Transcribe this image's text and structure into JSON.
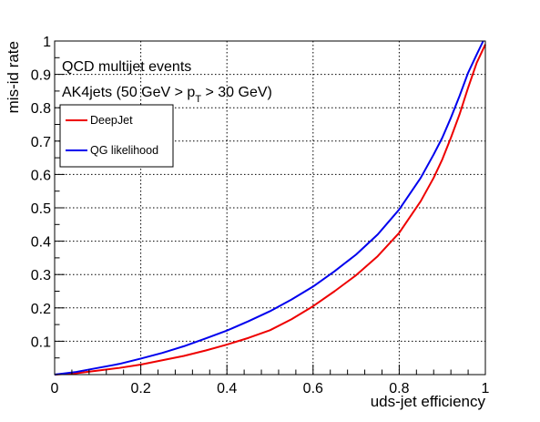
{
  "chart_data": {
    "type": "line",
    "title": "",
    "xlabel": "uds-jet efficiency",
    "ylabel": "mis-id rate",
    "xlim": [
      0,
      1
    ],
    "ylim": [
      0,
      1
    ],
    "grid": true,
    "x_ticks": [
      0,
      0.2,
      0.4,
      0.6,
      0.8,
      1
    ],
    "x_tick_labels": [
      "0",
      "0.2",
      "0.4",
      "0.6",
      "0.8",
      "1"
    ],
    "y_ticks": [
      0.1,
      0.2,
      0.3,
      0.4,
      0.5,
      0.6,
      0.7,
      0.8,
      0.9,
      1
    ],
    "y_tick_labels": [
      "0.1",
      "0.2",
      "0.3",
      "0.4",
      "0.5",
      "0.6",
      "0.7",
      "0.8",
      "0.9",
      "1"
    ],
    "annotations": {
      "line1": "QCD multijet events",
      "line2_prefix": "AK4jets (50 GeV > p",
      "line2_sub": "T",
      "line2_suffix": " > 30 GeV)"
    },
    "legend_placement": "top-left",
    "series": [
      {
        "name": "DeepJet",
        "color": "#ee0000",
        "points": [
          [
            0,
            0
          ],
          [
            0.05,
            0.004
          ],
          [
            0.1,
            0.012
          ],
          [
            0.15,
            0.02
          ],
          [
            0.2,
            0.03
          ],
          [
            0.25,
            0.043
          ],
          [
            0.3,
            0.056
          ],
          [
            0.35,
            0.072
          ],
          [
            0.4,
            0.09
          ],
          [
            0.45,
            0.11
          ],
          [
            0.5,
            0.133
          ],
          [
            0.55,
            0.166
          ],
          [
            0.6,
            0.205
          ],
          [
            0.65,
            0.25
          ],
          [
            0.7,
            0.298
          ],
          [
            0.75,
            0.355
          ],
          [
            0.8,
            0.425
          ],
          [
            0.85,
            0.52
          ],
          [
            0.88,
            0.59
          ],
          [
            0.9,
            0.645
          ],
          [
            0.92,
            0.71
          ],
          [
            0.94,
            0.78
          ],
          [
            0.96,
            0.86
          ],
          [
            0.98,
            0.935
          ],
          [
            1.0,
            0.99
          ]
        ]
      },
      {
        "name": "QG likelihood",
        "color": "#0000ee",
        "points": [
          [
            0,
            0
          ],
          [
            0.05,
            0.008
          ],
          [
            0.1,
            0.02
          ],
          [
            0.15,
            0.032
          ],
          [
            0.2,
            0.048
          ],
          [
            0.25,
            0.065
          ],
          [
            0.3,
            0.085
          ],
          [
            0.35,
            0.108
          ],
          [
            0.4,
            0.132
          ],
          [
            0.45,
            0.16
          ],
          [
            0.5,
            0.19
          ],
          [
            0.55,
            0.225
          ],
          [
            0.6,
            0.264
          ],
          [
            0.65,
            0.31
          ],
          [
            0.7,
            0.36
          ],
          [
            0.75,
            0.42
          ],
          [
            0.8,
            0.495
          ],
          [
            0.85,
            0.59
          ],
          [
            0.88,
            0.66
          ],
          [
            0.9,
            0.71
          ],
          [
            0.92,
            0.77
          ],
          [
            0.94,
            0.835
          ],
          [
            0.96,
            0.905
          ],
          [
            0.98,
            0.96
          ],
          [
            0.995,
            1.0
          ]
        ]
      }
    ]
  }
}
